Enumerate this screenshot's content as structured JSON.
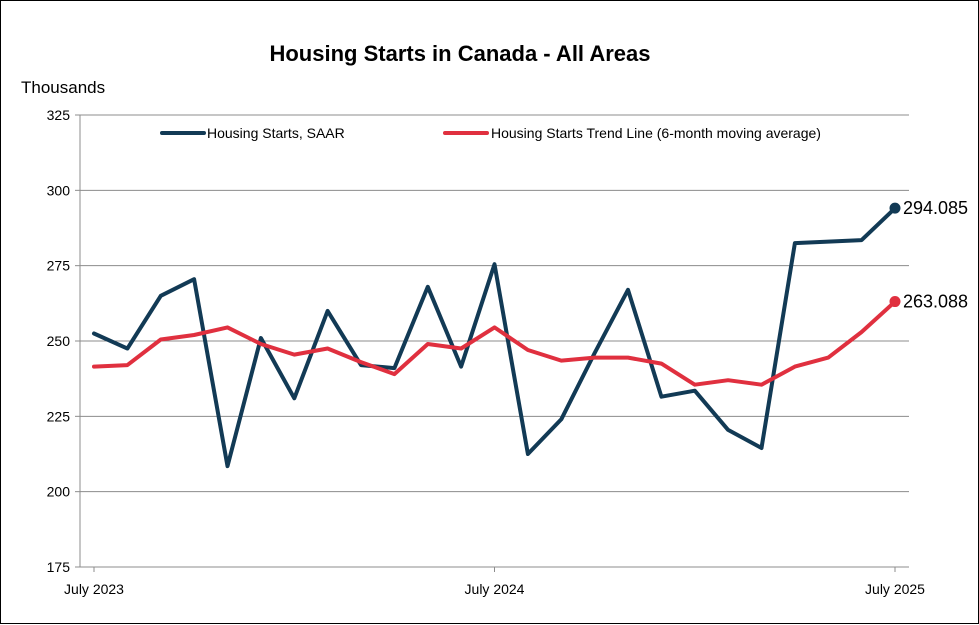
{
  "chart_data": {
    "type": "line",
    "title": "Housing Starts in Canada - All Areas",
    "y_units_label": "Thousands",
    "ylim": [
      175,
      325
    ],
    "yticks": [
      175,
      200,
      225,
      250,
      275,
      300,
      325
    ],
    "x_tick_labels": [
      {
        "index": 0,
        "label": "July 2023"
      },
      {
        "index": 12,
        "label": "July 2024"
      },
      {
        "index": 24,
        "label": "July 2025"
      }
    ],
    "grid": true,
    "legend_position": "top",
    "x_count": 25,
    "series": [
      {
        "name": "Housing Starts, SAAR",
        "color": "#123a55",
        "values": [
          252.5,
          247.5,
          265,
          270.5,
          208.5,
          251,
          231,
          260,
          242,
          241,
          268,
          241.5,
          275.5,
          212.5,
          224,
          246,
          267,
          231.5,
          233.5,
          220.5,
          214.5,
          282.5,
          283,
          283.5,
          294.085
        ],
        "end_label": "294.085"
      },
      {
        "name": "Housing Starts Trend Line (6-month moving average)",
        "color": "#e0303f",
        "values": [
          241.5,
          242,
          250.5,
          252,
          254.5,
          249,
          245.5,
          247.5,
          243,
          239,
          249,
          247.5,
          254.5,
          247,
          243.5,
          244.5,
          244.5,
          242.5,
          235.5,
          237,
          235.5,
          241.5,
          244.5,
          253,
          263.088
        ],
        "end_label": "263.088"
      }
    ]
  }
}
